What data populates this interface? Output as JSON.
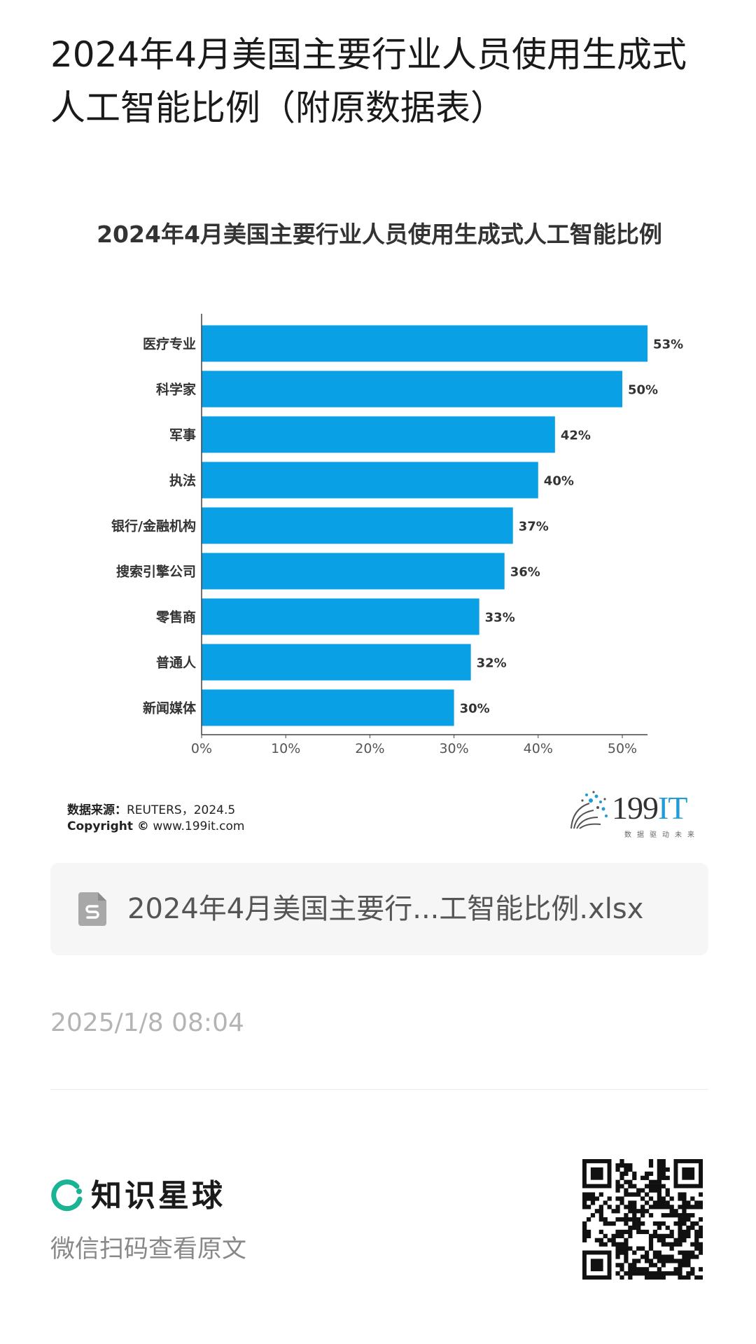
{
  "header": {
    "title": "2024年4月美国主要行业人员使用生成式人工智能比例（附原数据表）"
  },
  "chart_data": {
    "type": "bar",
    "orientation": "horizontal",
    "title": "2024年4月美国主要行业人员使用生成式人工智能比例",
    "categories": [
      "医疗专业",
      "科学家",
      "军事",
      "执法",
      "银行/金融机构",
      "搜索引擎公司",
      "零售商",
      "普通人",
      "新闻媒体"
    ],
    "values": [
      53,
      50,
      42,
      40,
      37,
      36,
      33,
      32,
      30
    ],
    "value_labels": [
      "53%",
      "50%",
      "42%",
      "40%",
      "37%",
      "36%",
      "33%",
      "32%",
      "30%"
    ],
    "xticks": [
      "0%",
      "10%",
      "20%",
      "30%",
      "40%",
      "50%"
    ],
    "xlim": [
      0,
      53
    ],
    "xlabel": "",
    "ylabel": "",
    "grid": false,
    "bar_color": "#0aa0e6"
  },
  "source": {
    "label": "数据来源：",
    "value": "REUTERS，2024.5",
    "copyright_label": "Copyright ©",
    "copyright_value": "www.199it.com"
  },
  "logo": {
    "number": "199",
    "it": "IT",
    "tagline": "数据驱动未来"
  },
  "attachment": {
    "icon": "spreadsheet-file-icon",
    "name": "2024年4月美国主要行...工智能比例.xlsx"
  },
  "post": {
    "timestamp": "2025/1/8 08:04"
  },
  "footer": {
    "brand_name": "知识星球",
    "scan_hint": "微信扫码查看原文",
    "brand_color": "#1ab394"
  }
}
